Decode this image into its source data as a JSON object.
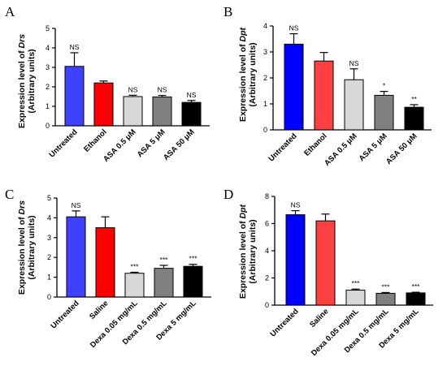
{
  "chart_data": [
    {
      "type": "bar",
      "panel": "A",
      "ylabel_line1": "Expression level of ",
      "ylabel_gene": "Drs",
      "ylabel_line2": "(Arbitrary units)",
      "ylim": [
        0,
        5
      ],
      "yticks": [
        "0",
        "1",
        "2",
        "3",
        "4",
        "5"
      ],
      "categories": [
        "Untreated",
        "Ethanol",
        "ASA 0.5 μM",
        "ASA 5 μM",
        "ASA 50 μM"
      ],
      "values": [
        3.05,
        2.2,
        1.5,
        1.48,
        1.2
      ],
      "errors": [
        0.7,
        0.1,
        0.07,
        0.08,
        0.1
      ],
      "significance": [
        "NS",
        "",
        "NS",
        "NS",
        "NS"
      ],
      "colors": [
        "#4040ff",
        "#ff0000",
        "#d8d8d8",
        "#808080",
        "#000000"
      ]
    },
    {
      "type": "bar",
      "panel": "B",
      "ylabel_line1": "Expression level of ",
      "ylabel_gene": "Dpt",
      "ylabel_line2": "(Arbitrary units)",
      "ylim": [
        0,
        4
      ],
      "yticks": [
        "0",
        "1",
        "2",
        "3",
        "4"
      ],
      "categories": [
        "Untreated",
        "Ethanol",
        "ASA 0.5 μM",
        "ASA 5 μM",
        "ASA 50 μM"
      ],
      "values": [
        3.3,
        2.65,
        1.93,
        1.33,
        0.87
      ],
      "errors": [
        0.4,
        0.33,
        0.42,
        0.15,
        0.1
      ],
      "significance": [
        "NS",
        "",
        "NS",
        "*",
        "**"
      ],
      "colors": [
        "#0000ff",
        "#ff4040",
        "#d8d8d8",
        "#808080",
        "#000000"
      ]
    },
    {
      "type": "bar",
      "panel": "C",
      "ylabel_line1": "Expression level of ",
      "ylabel_gene": "Drs",
      "ylabel_line2": "(Arbitrary units)",
      "ylim": [
        0,
        5
      ],
      "yticks": [
        "0",
        "1",
        "2",
        "3",
        "4",
        "5"
      ],
      "categories": [
        "Untreated",
        "Saline",
        "Dexa 0.05 mg/mL",
        "Dexa 0.5 mg/mL",
        "Dexa 5 mg/mL"
      ],
      "values": [
        4.05,
        3.5,
        1.2,
        1.45,
        1.55
      ],
      "errors": [
        0.3,
        0.55,
        0.05,
        0.15,
        0.1
      ],
      "significance": [
        "NS",
        "",
        "***",
        "***",
        "***"
      ],
      "colors": [
        "#4040ff",
        "#ff0000",
        "#d8d8d8",
        "#808080",
        "#000000"
      ]
    },
    {
      "type": "bar",
      "panel": "D",
      "ylabel_line1": "Expression level of ",
      "ylabel_gene": "Dpt",
      "ylabel_line2": "(Arbitrary units)",
      "ylim": [
        0,
        8
      ],
      "yticks": [
        "0",
        "2",
        "4",
        "6",
        "8"
      ],
      "categories": [
        "Untreated",
        "Saline",
        "Dexa 0.05 mg/mL",
        "Dexa 0.5 mg/mL",
        "Dexa 5 mg/mL"
      ],
      "values": [
        6.65,
        6.2,
        1.1,
        0.87,
        0.9
      ],
      "errors": [
        0.3,
        0.5,
        0.08,
        0.06,
        0.05
      ],
      "significance": [
        "NS",
        "",
        "***",
        "***",
        "***"
      ],
      "colors": [
        "#0000ff",
        "#ff4040",
        "#d8d8d8",
        "#808080",
        "#000000"
      ]
    }
  ]
}
